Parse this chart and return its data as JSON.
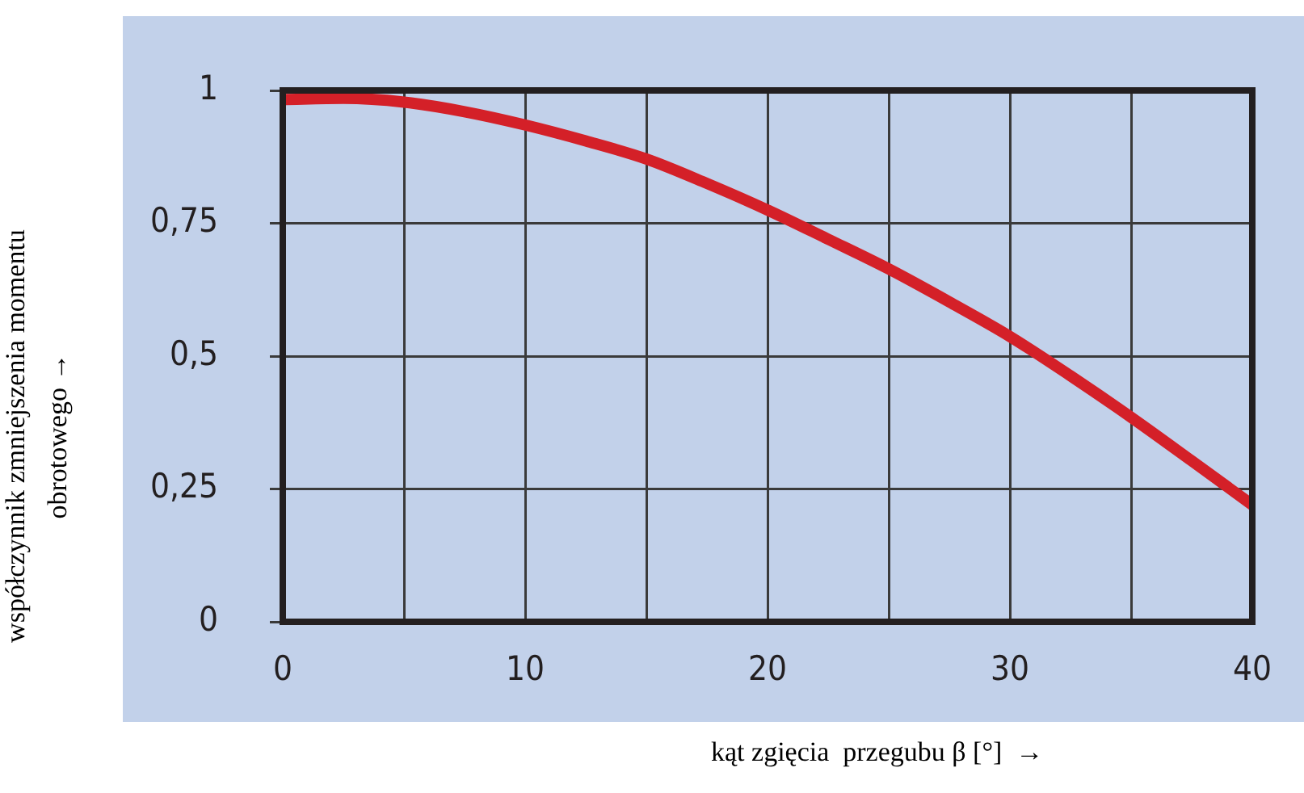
{
  "chart_data": {
    "type": "line",
    "xlabel": "kąt zgięcia  przegubu β [°]  →",
    "ylabel": "współczynnik zmniejszenia momentu obrotowego →",
    "x": [
      0,
      2.5,
      5,
      7.5,
      10,
      12.5,
      15,
      17.5,
      20,
      22.5,
      25,
      27.5,
      30,
      32.5,
      35,
      37.5,
      40
    ],
    "series": [
      {
        "color": "#d42028",
        "values": [
          0.983,
          0.985,
          0.978,
          0.96,
          0.935,
          0.905,
          0.871,
          0.825,
          0.775,
          0.72,
          0.664,
          0.602,
          0.537,
          0.463,
          0.385,
          0.303,
          0.22
        ]
      }
    ],
    "xlim": [
      0,
      40
    ],
    "xticks": [
      0,
      {
        "value": 5,
        "label": null
      },
      10,
      {
        "value": 15,
        "label": null
      },
      20,
      {
        "value": 25,
        "label": null
      },
      30,
      {
        "value": 35,
        "label": null
      },
      40
    ],
    "ylim": [
      0,
      1
    ],
    "yticks": [
      0,
      {
        "value": 0.25,
        "label": "0,25"
      },
      {
        "value": 0.5,
        "label": "0,5"
      },
      {
        "value": 0.75,
        "label": "0,75"
      },
      1
    ],
    "grid": true,
    "legend": false,
    "marker": "none",
    "line_style": "solid"
  }
}
